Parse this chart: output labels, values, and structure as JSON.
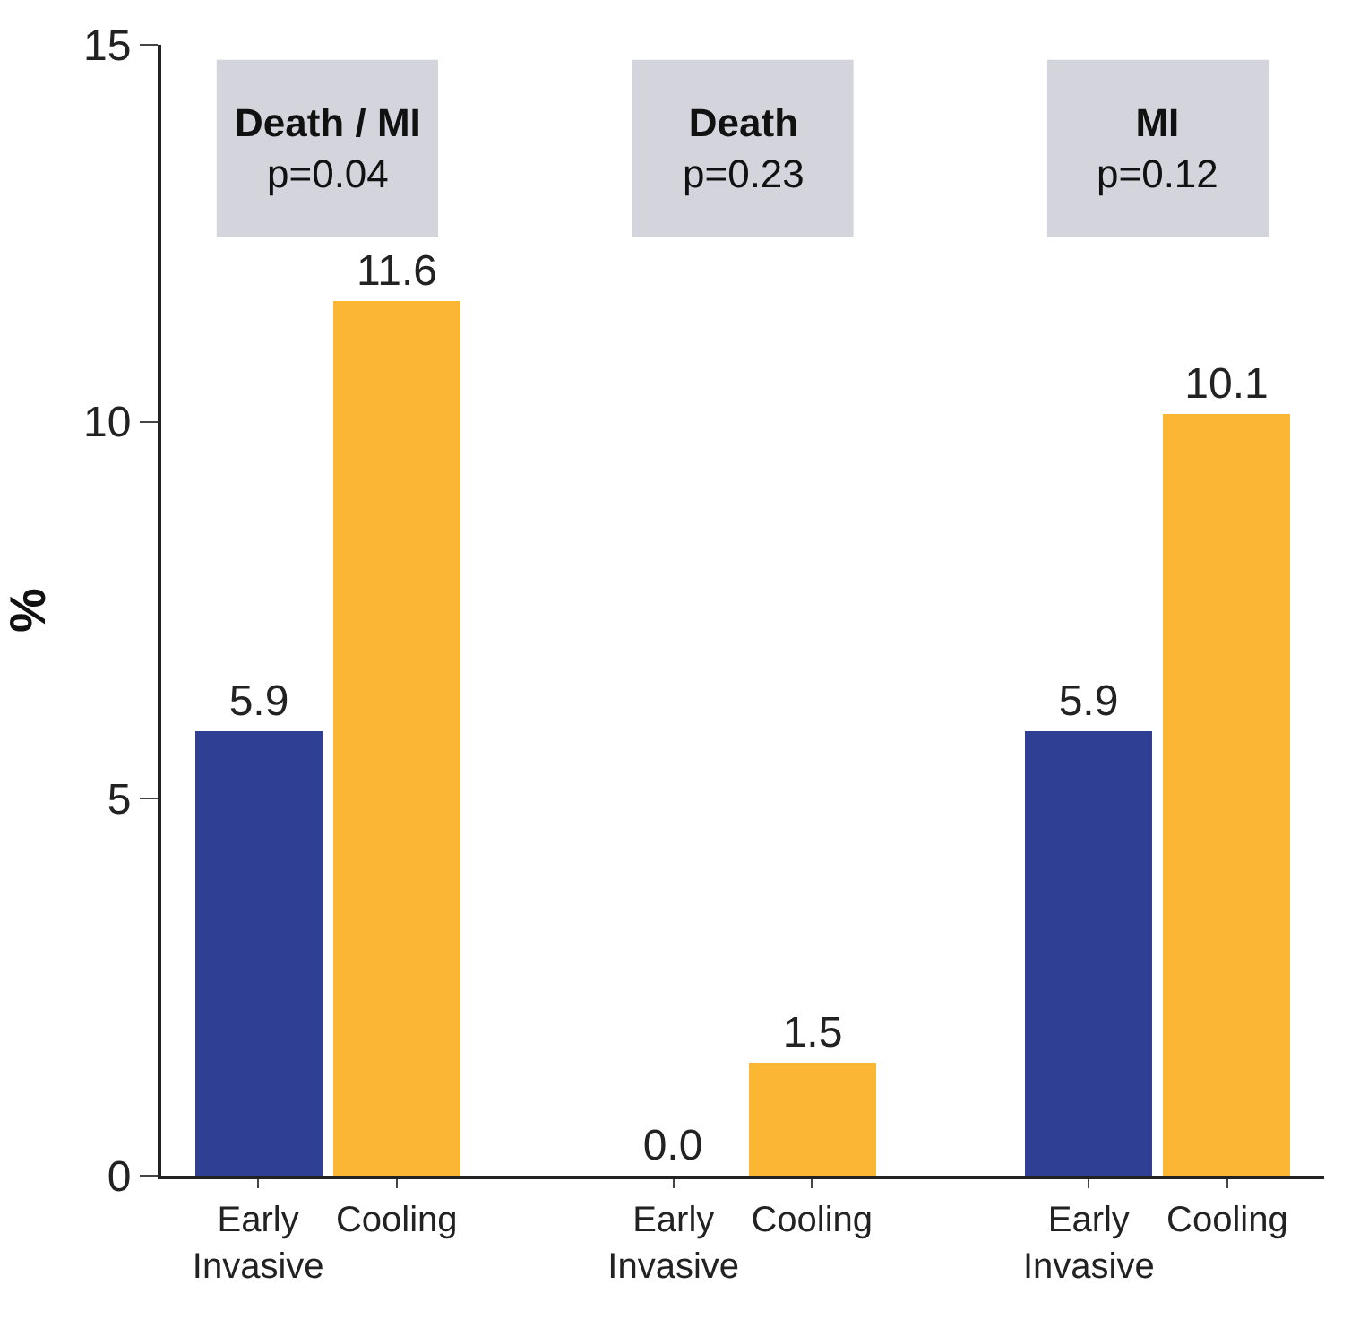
{
  "chart_data": {
    "type": "bar",
    "ylabel": "%",
    "categories": [
      "Early Invasive",
      "Cooling",
      "Early Invasive",
      "Cooling",
      "Early Invasive",
      "Cooling"
    ],
    "values": [
      5.9,
      11.6,
      0.0,
      1.5,
      5.9,
      10.1
    ],
    "colors": [
      "#2f3f94",
      "#fbb733",
      "#2f3f94",
      "#fbb733",
      "#2f3f94",
      "#fbb733"
    ],
    "value_labels": [
      "5.9",
      "11.6",
      "0.0",
      "1.5",
      "5.9",
      "10.1"
    ],
    "annotations": [
      "Death / MI\np=0.04",
      "Death\np=0.23",
      "MI\np=0.12"
    ],
    "ylim": [
      0,
      15
    ],
    "yticks": [
      0,
      5,
      10,
      15
    ]
  }
}
